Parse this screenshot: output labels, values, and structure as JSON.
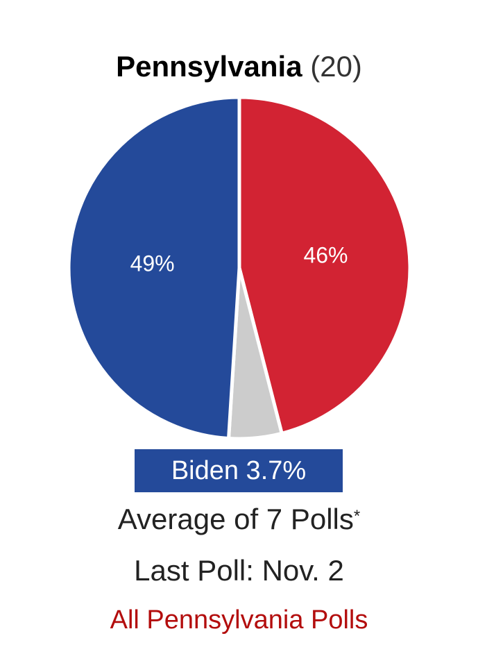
{
  "header": {
    "state": "Pennsylvania",
    "electoral_votes": "(20)"
  },
  "leader": {
    "label": "Biden 3.7%",
    "color": "#244a9a"
  },
  "summary": {
    "average_text": "Average of 7 Polls",
    "footnote_mark": "*",
    "last_poll": "Last Poll: Nov. 2"
  },
  "link": {
    "label": "All Pennsylvania Polls",
    "color": "#b30d0d"
  },
  "chart_data": {
    "type": "pie",
    "slices": [
      {
        "value": 46,
        "label": "46%",
        "color": "#d22333"
      },
      {
        "value": 5,
        "label": "",
        "color": "#cccccc"
      },
      {
        "value": 49,
        "label": "49%",
        "color": "#244a9a"
      }
    ],
    "start_angle_deg": 0,
    "direction": "clockwise",
    "legend": "none"
  }
}
